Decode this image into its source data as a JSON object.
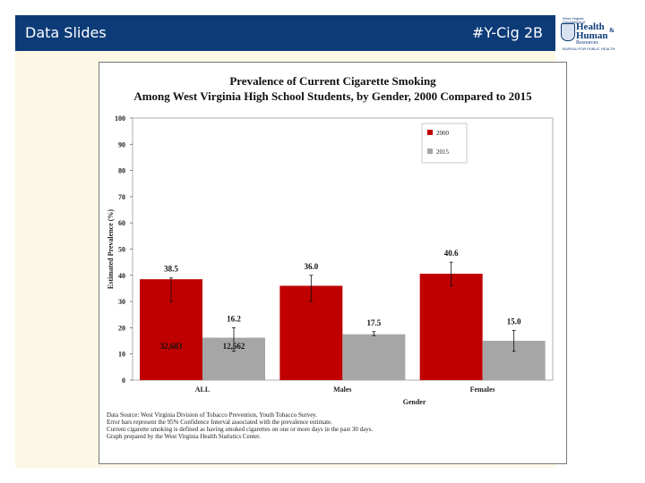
{
  "header": {
    "left_title": "Data Slides",
    "right_title": "#Y-Cig 2B"
  },
  "logo": {
    "line1": "West Virginia",
    "line2": "Department of",
    "word1": "Health",
    "amp": "&",
    "word2": "Human",
    "word3": "Resources",
    "line3": "BUREAU FOR PUBLIC HEALTH"
  },
  "colors": {
    "header_bg": "#0d3b78",
    "slide_bg": "#fdf8e6",
    "series_2000": "#c00000",
    "series_2015": "#a6a6a6"
  },
  "chart_data": {
    "type": "bar",
    "title_line1": "Prevalence of Current Cigarette Smoking",
    "title_line2": "Among West Virginia High School Students, by Gender, 2000 Compared to 2015",
    "xlabel": "Gender",
    "ylabel": "Estimated Prevalence (%)",
    "ylim": [
      0,
      100
    ],
    "yticks": [
      0,
      10,
      20,
      30,
      40,
      50,
      60,
      70,
      80,
      90,
      100
    ],
    "categories": [
      "ALL",
      "Males",
      "Females"
    ],
    "series": [
      {
        "name": "2000",
        "values": [
          38.5,
          36.0,
          40.6
        ],
        "value_labels": [
          "38.5",
          "36.0",
          "40.6"
        ],
        "ci_low": [
          30,
          30,
          36
        ],
        "ci_high": [
          39,
          40,
          45
        ]
      },
      {
        "name": "2015",
        "values": [
          16.2,
          17.5,
          15.0
        ],
        "value_labels": [
          "16.2",
          "17.5",
          "15.0"
        ],
        "ci_low": [
          11,
          17,
          11
        ],
        "ci_high": [
          20,
          18.5,
          19
        ]
      }
    ],
    "sample_labels": [
      {
        "series": 0,
        "category": 0,
        "text": "32,683"
      },
      {
        "series": 1,
        "category": 0,
        "text": "12,562"
      }
    ],
    "legend": {
      "placement": "top-right"
    },
    "grid": false
  },
  "notes": [
    "Data Source: West Virginia Division of Tobacco Prevention, Youth Tobacco Survey.",
    "Error bars represent the 95% Confidence Interval associated with the prevalence estimate.",
    "Current cigarette smoking is defined as having smoked cigarettes on one or more days in the past 30 days.",
    "Graph prepared by the West Virginia Health Statistics Center."
  ]
}
